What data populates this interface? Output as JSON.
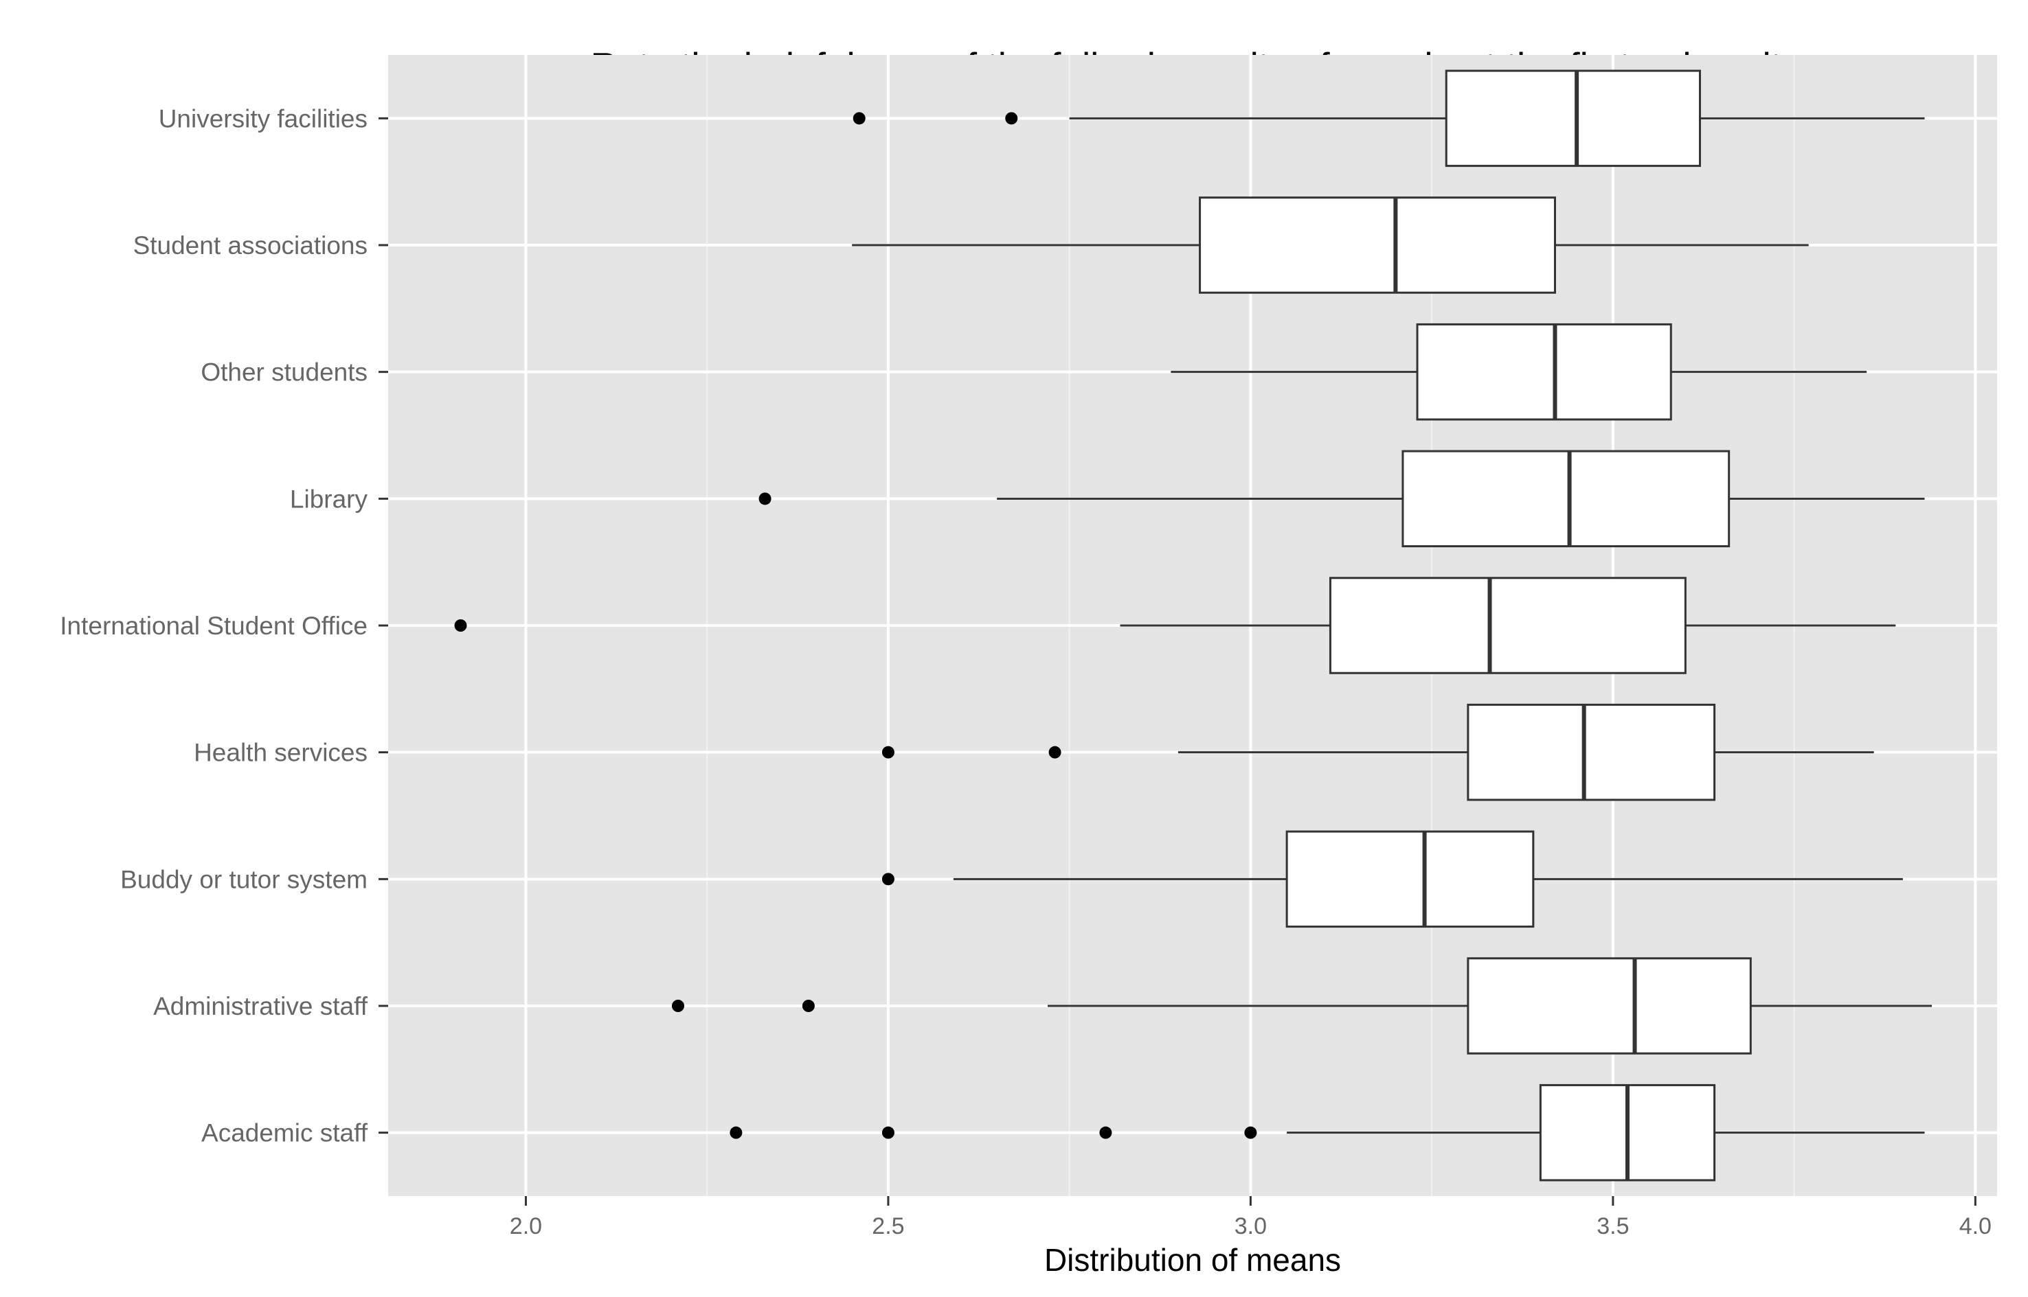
{
  "chart_data": {
    "type": "boxplot",
    "orientation": "horizontal",
    "title": "Rate the helpfulness of the following units of people at the first university",
    "xlabel": "Distribution of means",
    "ylabel": "",
    "xlim": [
      1.81,
      4.03
    ],
    "x_ticks": [
      "2.0",
      "2.5",
      "3.0",
      "3.5",
      "4.0"
    ],
    "grid": true,
    "legend": "none",
    "colors": {
      "panel": "#e5e5e5",
      "grid": "#ffffff",
      "box_fill": "#ffffff",
      "box_line": "#333333",
      "outlier": "#000000",
      "tick_text": "#666666"
    },
    "categories": [
      "Academic staff",
      "Administrative staff",
      "Buddy or tutor system",
      "Health services",
      "International Student Office",
      "Library",
      "Other students",
      "Student associations",
      "University facilities"
    ],
    "boxes": [
      {
        "category": "Academic staff",
        "whisker_low": 3.05,
        "q1": 3.4,
        "median": 3.52,
        "q3": 3.64,
        "whisker_high": 3.93,
        "outliers": [
          2.29,
          2.5,
          2.8,
          3.0
        ]
      },
      {
        "category": "Administrative staff",
        "whisker_low": 2.72,
        "q1": 3.3,
        "median": 3.53,
        "q3": 3.69,
        "whisker_high": 3.94,
        "outliers": [
          2.21,
          2.39
        ]
      },
      {
        "category": "Buddy or tutor system",
        "whisker_low": 2.59,
        "q1": 3.05,
        "median": 3.24,
        "q3": 3.39,
        "whisker_high": 3.9,
        "outliers": [
          2.5
        ]
      },
      {
        "category": "Health services",
        "whisker_low": 2.9,
        "q1": 3.3,
        "median": 3.46,
        "q3": 3.64,
        "whisker_high": 3.86,
        "outliers": [
          2.5,
          2.73
        ]
      },
      {
        "category": "International Student Office",
        "whisker_low": 2.82,
        "q1": 3.11,
        "median": 3.33,
        "q3": 3.6,
        "whisker_high": 3.89,
        "outliers": [
          1.91
        ]
      },
      {
        "category": "Library",
        "whisker_low": 2.65,
        "q1": 3.21,
        "median": 3.44,
        "q3": 3.66,
        "whisker_high": 3.93,
        "outliers": [
          2.33
        ]
      },
      {
        "category": "Other students",
        "whisker_low": 2.89,
        "q1": 3.23,
        "median": 3.42,
        "q3": 3.58,
        "whisker_high": 3.85,
        "outliers": []
      },
      {
        "category": "Student associations",
        "whisker_low": 2.45,
        "q1": 2.93,
        "median": 3.2,
        "q3": 3.42,
        "whisker_high": 3.77,
        "outliers": []
      },
      {
        "category": "University facilities",
        "whisker_low": 2.75,
        "q1": 3.27,
        "median": 3.45,
        "q3": 3.62,
        "whisker_high": 3.93,
        "outliers": [
          2.46,
          2.67
        ]
      }
    ]
  }
}
